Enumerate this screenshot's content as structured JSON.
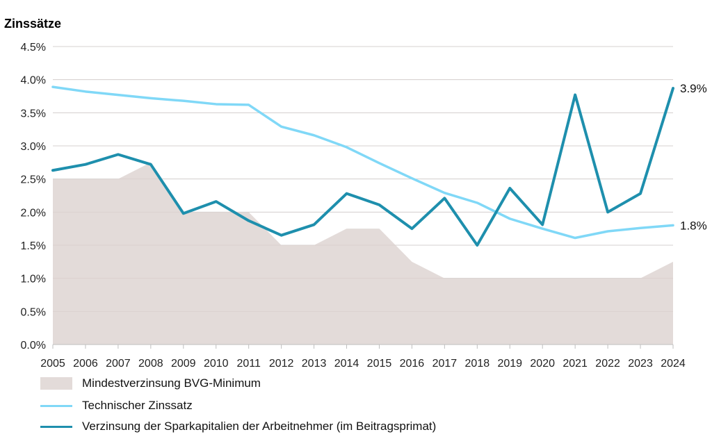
{
  "chart_data": {
    "type": "line",
    "title": "Zinssätze",
    "xlabel": "",
    "ylabel": "",
    "x": [
      "2005",
      "2006",
      "2007",
      "2008",
      "2009",
      "2010",
      "2011",
      "2012",
      "2013",
      "2014",
      "2015",
      "2016",
      "2017",
      "2018",
      "2019",
      "2020",
      "2021",
      "2022",
      "2023",
      "2024"
    ],
    "ylim": [
      0,
      4.5
    ],
    "yticks": [
      0,
      0.5,
      1.0,
      1.5,
      2.0,
      2.5,
      3.0,
      3.5,
      4.0,
      4.5
    ],
    "ytick_labels": [
      "0.0%",
      "0.5%",
      "1.0%",
      "1.5%",
      "2.0%",
      "2.5%",
      "3.0%",
      "3.5%",
      "4.0%",
      "4.5%"
    ],
    "grid": true,
    "legend_position": "bottom",
    "series": [
      {
        "name": "Mindestverzinsung BVG-Minimum",
        "kind": "area",
        "color": "#e3dbd9",
        "values": [
          2.5,
          2.5,
          2.5,
          2.75,
          2.0,
          2.0,
          2.0,
          1.5,
          1.5,
          1.75,
          1.75,
          1.25,
          1.0,
          1.0,
          1.0,
          1.0,
          1.0,
          1.0,
          1.0,
          1.25
        ]
      },
      {
        "name": "Technischer Zinssatz",
        "kind": "line",
        "color": "#80d8f7",
        "values": [
          3.89,
          3.82,
          3.77,
          3.72,
          3.68,
          3.63,
          3.62,
          3.29,
          3.16,
          2.98,
          2.74,
          2.51,
          2.29,
          2.14,
          1.9,
          1.75,
          1.61,
          1.71,
          1.76,
          1.8
        ],
        "end_label": "1.8%"
      },
      {
        "name": "Verzinsung der Sparkapitalien der Arbeitnehmer (im Beitragsprimat)",
        "kind": "line",
        "color": "#1e8fad",
        "values": [
          2.63,
          2.72,
          2.87,
          2.72,
          1.98,
          2.16,
          1.87,
          1.65,
          1.81,
          2.28,
          2.11,
          1.75,
          2.21,
          1.5,
          2.36,
          1.81,
          3.77,
          2.0,
          2.28,
          3.87
        ],
        "end_label": "3.9%"
      }
    ]
  }
}
